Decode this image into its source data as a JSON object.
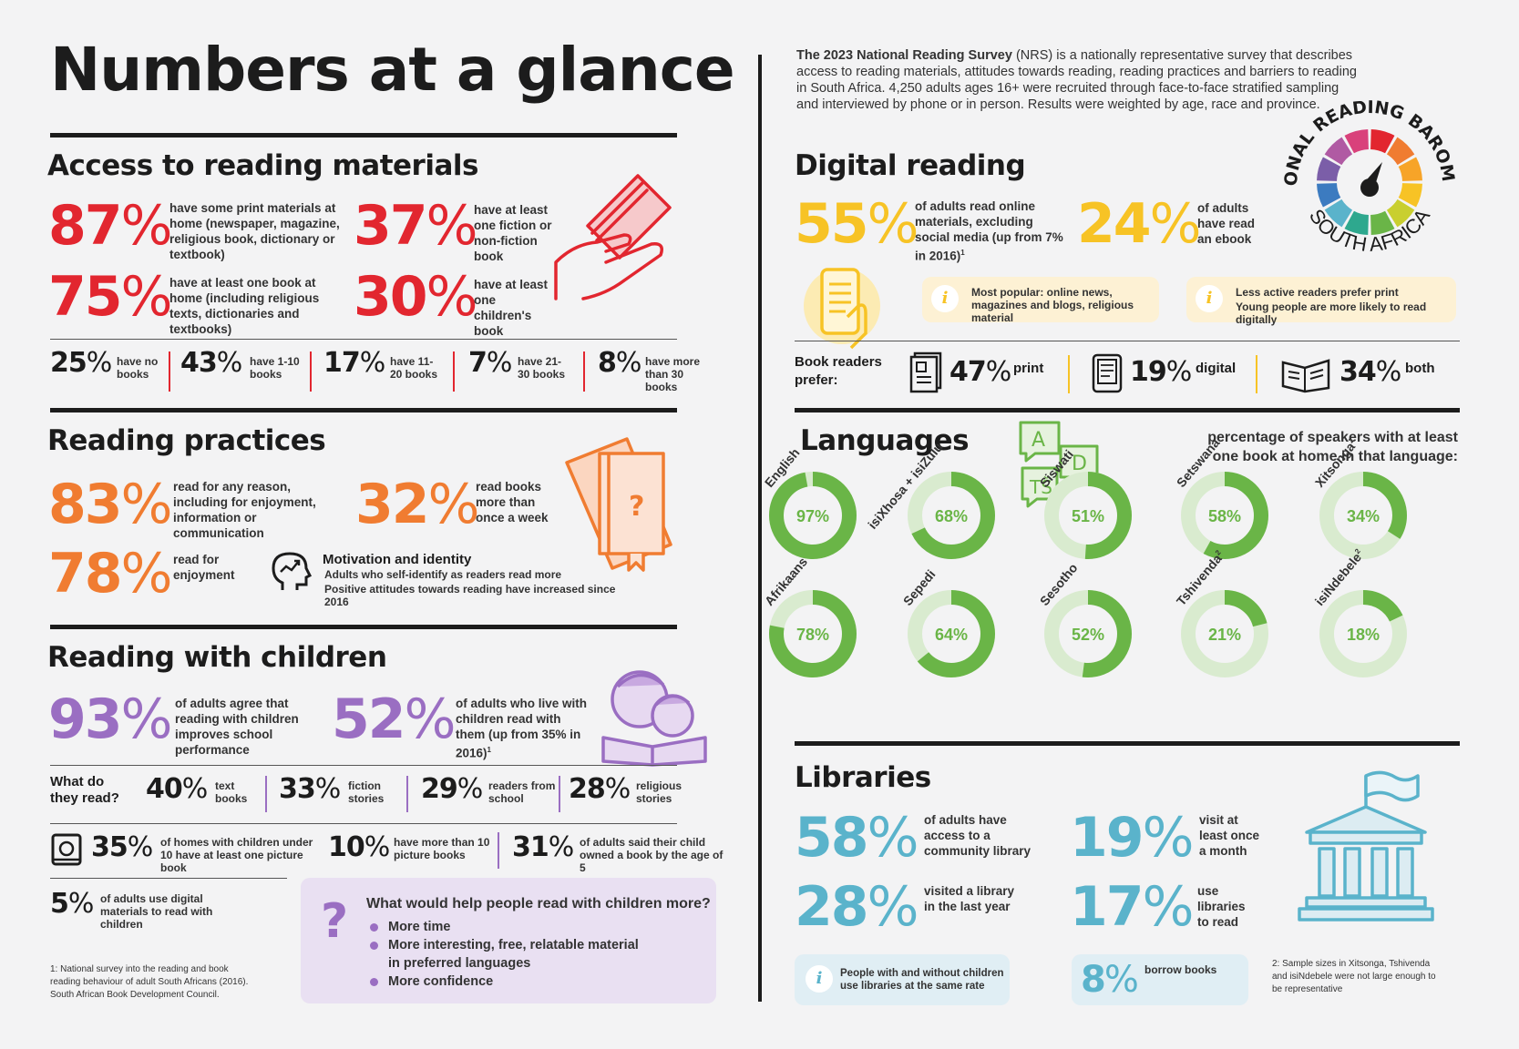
{
  "title": "Numbers at a glance",
  "intro": {
    "bold": "The 2023 National Reading Survey",
    "rest": " (NRS) is a nationally representative survey that describes access to reading materials, attitudes towards reading, reading practices and barriers to reading in South Africa. 4,250 adults ages 16+ were recruited through face-to-face stratified sampling and interviewed by phone or in person. Results were weighted by age, race and province."
  },
  "logo": {
    "top": "NATIONAL READING BAROMETER",
    "bottom": "SOUTH AFRICA"
  },
  "access": {
    "heading": "Access to reading materials",
    "stats": [
      {
        "num": "87",
        "pc": "%",
        "text": "have some print materials at home (newspaper, magazine, religious book, dictionary or textbook)"
      },
      {
        "num": "37",
        "pc": "%",
        "text": "have at least one fiction or non-fiction book"
      },
      {
        "num": "75",
        "pc": "%",
        "text": "have at least one book at home (including religious texts, dictionaries and textbooks)"
      },
      {
        "num": "30",
        "pc": "%",
        "text": "have at least one children's book"
      }
    ],
    "books": [
      {
        "num": "25",
        "pc": "%",
        "text": "have no books"
      },
      {
        "num": "43",
        "pc": "%",
        "text": "have 1-10 books"
      },
      {
        "num": "17",
        "pc": "%",
        "text": "have 11-20 books"
      },
      {
        "num": "7",
        "pc": "%",
        "text": "have 21-30 books"
      },
      {
        "num": "8",
        "pc": "%",
        "text": "have more than 30 books"
      }
    ]
  },
  "practices": {
    "heading": "Reading practices",
    "stats": [
      {
        "num": "83",
        "pc": "%",
        "text": "read for any reason, including for enjoyment, information or communication"
      },
      {
        "num": "32",
        "pc": "%",
        "text": "read books more than once a week"
      },
      {
        "num": "78",
        "pc": "%",
        "text": "read for enjoyment"
      }
    ],
    "motivation": {
      "title": "Motivation and identity",
      "line1": "Adults who self-identify as readers read more",
      "line2": "Positive attitudes towards reading have increased since 2016"
    }
  },
  "children": {
    "heading": "Reading with children",
    "stats": [
      {
        "num": "93",
        "pc": "%",
        "text": "of adults agree that reading with children improves school performance"
      },
      {
        "num": "52",
        "pc": "%",
        "text": "of adults who live with children read with them (up from 35% in 2016)",
        "sup": "1"
      }
    ],
    "what_label": "What do they read?",
    "what": [
      {
        "num": "40",
        "pc": "%",
        "text": "text books"
      },
      {
        "num": "33",
        "pc": "%",
        "text": "fiction stories"
      },
      {
        "num": "29",
        "pc": "%",
        "text": "readers from school"
      },
      {
        "num": "28",
        "pc": "%",
        "text": "religious stories"
      }
    ],
    "homes": [
      {
        "num": "35",
        "pc": "%",
        "text": "of homes with children under 10 have at least one picture book"
      },
      {
        "num": "10",
        "pc": "%",
        "text": "have more than 10 picture books"
      },
      {
        "num": "31",
        "pc": "%",
        "text": "of adults said their child owned a book by the age of 5"
      }
    ],
    "digital": {
      "num": "5",
      "pc": "%",
      "text": "of adults use digital materials to read with children"
    },
    "help": {
      "question": "What would help people read with children more?",
      "items": [
        "More time",
        "More interesting, free, relatable material in preferred languages",
        "More confidence"
      ]
    },
    "footnote1": "1: National survey into the reading and book reading behaviour of adult South Africans (2016). South African Book Development Council."
  },
  "digital": {
    "heading": "Digital reading",
    "stats": [
      {
        "num": "55",
        "pc": "%",
        "text": "of adults read online materials, excluding social media (up from 7% in 2016)",
        "sup": "1"
      },
      {
        "num": "24",
        "pc": "%",
        "text": "of adults have read an ebook"
      }
    ],
    "info1": "Most popular: online news, magazines and blogs, religious material",
    "info2a": "Less active readers prefer print",
    "info2b": "Young people are more likely to read digitally",
    "prefer_label": "Book readers prefer:",
    "prefer": [
      {
        "num": "47",
        "pc": "%",
        "text": "print"
      },
      {
        "num": "19",
        "pc": "%",
        "text": "digital"
      },
      {
        "num": "34",
        "pc": "%",
        "text": "both"
      }
    ]
  },
  "languages": {
    "heading": "Languages",
    "subtitle": "percentage of speakers with at least one book at home in that language:",
    "items": [
      {
        "name": "English",
        "value": 97,
        "label": "97%"
      },
      {
        "name": "isiXhosa + isiZulu",
        "value": 68,
        "label": "68%"
      },
      {
        "name": "Siswati",
        "value": 51,
        "label": "51%"
      },
      {
        "name": "Setswana",
        "value": 58,
        "label": "58%"
      },
      {
        "name": "Xitsonga",
        "sup": "2",
        "value": 34,
        "label": "34%"
      },
      {
        "name": "Afrikaans",
        "value": 78,
        "label": "78%"
      },
      {
        "name": "Sepedi",
        "value": 64,
        "label": "64%"
      },
      {
        "name": "Sesotho",
        "value": 52,
        "label": "52%"
      },
      {
        "name": "Tshivenda",
        "sup": "2",
        "value": 21,
        "label": "21%"
      },
      {
        "name": "isiNdebele",
        "sup": "2",
        "value": 18,
        "label": "18%"
      }
    ]
  },
  "libraries": {
    "heading": "Libraries",
    "stats": [
      {
        "num": "58",
        "pc": "%",
        "text": "of adults have access to a community library"
      },
      {
        "num": "19",
        "pc": "%",
        "text": "visit at least once a month"
      },
      {
        "num": "28",
        "pc": "%",
        "text": "visited a library in the last year"
      },
      {
        "num": "17",
        "pc": "%",
        "text": "use libraries to read"
      }
    ],
    "info": "People with and without children use libraries at the same rate",
    "borrow": {
      "num": "8",
      "pc": "%",
      "text": "borrow books"
    },
    "footnote2": "2: Sample sizes in Xitsonga, Tshivenda and isiNdebele were not large enough to be representative"
  },
  "colors": {
    "red": "#e2262f",
    "orange": "#f07c31",
    "purple": "#9a6ec2",
    "yellow": "#f7c325",
    "blue": "#5ab3cb",
    "green": "#6ab547"
  }
}
